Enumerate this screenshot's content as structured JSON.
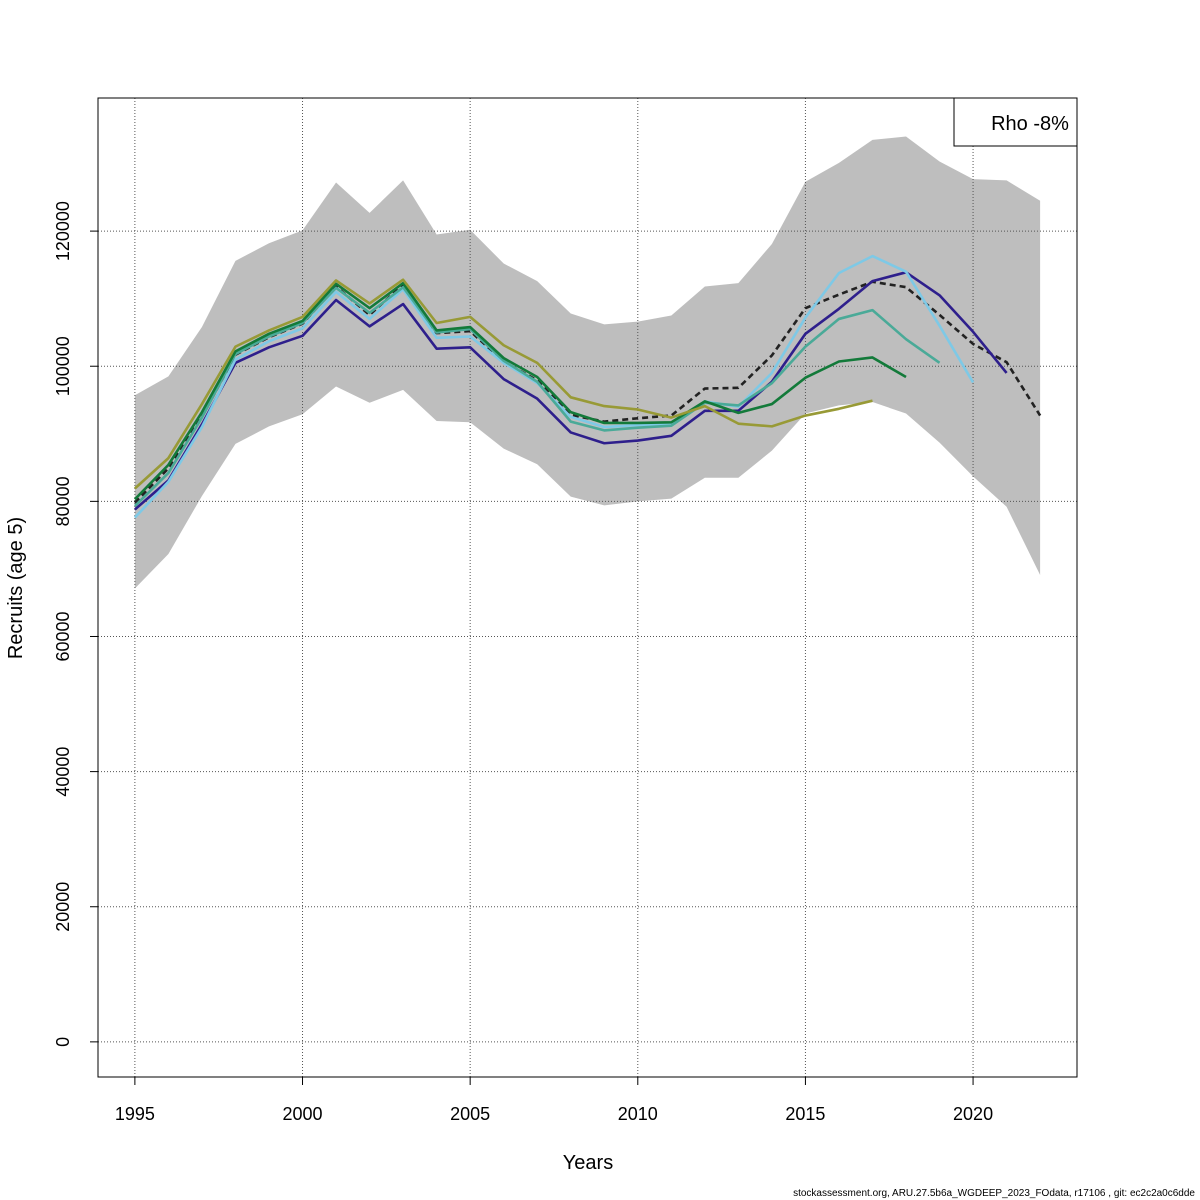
{
  "chart_data": {
    "type": "line",
    "xlabel": "Years",
    "ylabel": "Recruits (age 5)",
    "xlim": [
      1993.9,
      2023.1
    ],
    "ylim": [
      -5200,
      139700
    ],
    "x_ticks": [
      1995,
      2000,
      2005,
      2010,
      2015,
      2020
    ],
    "y_ticks": [
      0,
      20000,
      40000,
      60000,
      80000,
      100000,
      120000
    ],
    "grid": true,
    "legend_text": "Rho -8%",
    "legend_position": "top-right",
    "footer": "stockassessment.org, ARU.27.5b6a_WGDEEP_2023_FOdata, r17106 , git: ec2c2a0c6dde",
    "confidence_band": {
      "color": "#bebebe",
      "x": [
        1995,
        1996,
        1997,
        1998,
        1999,
        2000,
        2001,
        2002,
        2003,
        2004,
        2005,
        2006,
        2007,
        2008,
        2009,
        2010,
        2011,
        2012,
        2013,
        2014,
        2015,
        2016,
        2017,
        2018,
        2019,
        2020,
        2021,
        2022
      ],
      "upper": [
        95700,
        98500,
        105800,
        115600,
        118200,
        120100,
        127200,
        122700,
        127500,
        119500,
        120200,
        115200,
        112600,
        107800,
        106200,
        106600,
        107500,
        111800,
        112300,
        118100,
        127300,
        130100,
        133500,
        134000,
        130300,
        127700,
        127500,
        124500
      ],
      "lower": [
        67100,
        72200,
        80800,
        88500,
        91100,
        92900,
        97000,
        94600,
        96500,
        91900,
        91700,
        87800,
        85500,
        80700,
        79400,
        80000,
        80400,
        83500,
        83500,
        87500,
        93000,
        94200,
        94700,
        93000,
        88700,
        83700,
        79200,
        69100
      ]
    },
    "series": [
      {
        "color": "#222222",
        "dashed": true,
        "x": [
          1995,
          1996,
          1997,
          1998,
          1999,
          2000,
          2001,
          2002,
          2003,
          2004,
          2005,
          2006,
          2007,
          2008,
          2009,
          2010,
          2011,
          2012,
          2013,
          2014,
          2015,
          2016,
          2017,
          2018,
          2019,
          2020,
          2021,
          2022
        ],
        "values": [
          79800,
          84900,
          92500,
          101700,
          104300,
          106300,
          111800,
          107600,
          112100,
          104900,
          105200,
          100700,
          97900,
          92800,
          91800,
          92300,
          92700,
          96700,
          96800,
          101600,
          108600,
          110600,
          112500,
          111700,
          107600,
          103300,
          100600,
          92700
        ]
      },
      {
        "color": "#2e1f8c",
        "x": [
          1995,
          1996,
          1997,
          1998,
          1999,
          2000,
          2001,
          2002,
          2003,
          2004,
          2005,
          2006,
          2007,
          2008,
          2009,
          2010,
          2011,
          2012,
          2013,
          2014,
          2015,
          2016,
          2017,
          2018,
          2019,
          2020,
          2021
        ],
        "values": [
          78800,
          83100,
          91400,
          100500,
          102800,
          104500,
          109800,
          105900,
          109200,
          102600,
          102800,
          98100,
          95200,
          90200,
          88600,
          89000,
          89700,
          93400,
          93400,
          97700,
          104800,
          108500,
          112600,
          113900,
          110500,
          105100,
          99000
        ]
      },
      {
        "color": "#7ec9e6",
        "x": [
          1995,
          1996,
          1997,
          1998,
          1999,
          2000,
          2001,
          2002,
          2003,
          2004,
          2005,
          2006,
          2007,
          2008,
          2009,
          2010,
          2011,
          2012,
          2013,
          2014,
          2015,
          2016,
          2017,
          2018,
          2019,
          2020
        ],
        "values": [
          77600,
          82900,
          91000,
          101000,
          103700,
          105600,
          111000,
          107000,
          111400,
          104200,
          104400,
          100500,
          97500,
          92500,
          91000,
          91300,
          91400,
          94800,
          94000,
          99000,
          107200,
          113800,
          116300,
          114000,
          106000,
          97600
        ]
      },
      {
        "color": "#4aaa98",
        "x": [
          1995,
          1996,
          1997,
          1998,
          1999,
          2000,
          2001,
          2002,
          2003,
          2004,
          2005,
          2006,
          2007,
          2008,
          2009,
          2010,
          2011,
          2012,
          2013,
          2014,
          2015,
          2016,
          2017,
          2018,
          2019
        ],
        "values": [
          79300,
          84200,
          92400,
          101800,
          104400,
          106400,
          111600,
          107900,
          111700,
          105000,
          105500,
          100800,
          97700,
          91800,
          90500,
          90900,
          91200,
          94600,
          94200,
          97500,
          102900,
          107000,
          108300,
          104000,
          100500
        ]
      },
      {
        "color": "#137a3a",
        "x": [
          1995,
          1996,
          1997,
          1998,
          1999,
          2000,
          2001,
          2002,
          2003,
          2004,
          2005,
          2006,
          2007,
          2008,
          2009,
          2010,
          2011,
          2012,
          2013,
          2014,
          2015,
          2016,
          2017,
          2018
        ],
        "values": [
          80300,
          85400,
          93200,
          102200,
          104800,
          106700,
          112200,
          108600,
          112300,
          105300,
          105800,
          101200,
          98400,
          93200,
          91600,
          91600,
          91700,
          94800,
          93100,
          94400,
          98300,
          100700,
          101300,
          98400
        ]
      },
      {
        "color": "#989a36",
        "x": [
          1995,
          1996,
          1997,
          1998,
          1999,
          2000,
          2001,
          2002,
          2003,
          2004,
          2005,
          2006,
          2007,
          2008,
          2009,
          2010,
          2011,
          2012,
          2013,
          2014,
          2015,
          2016,
          2017
        ],
        "values": [
          81900,
          86400,
          94400,
          102900,
          105300,
          107300,
          112700,
          109300,
          112800,
          106400,
          107300,
          103100,
          100500,
          95400,
          94100,
          93600,
          92400,
          94100,
          91500,
          91100,
          92700,
          93700,
          94900
        ]
      }
    ]
  }
}
